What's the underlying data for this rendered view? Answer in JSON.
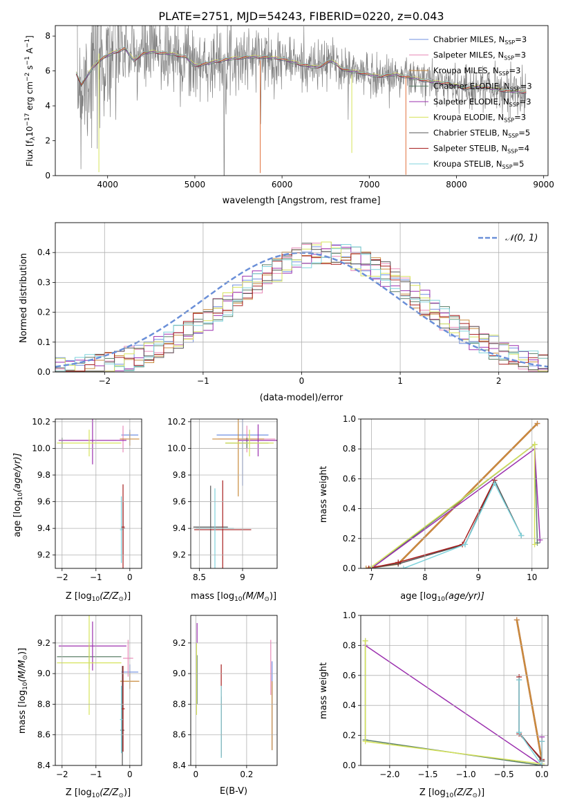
{
  "figure_title": "PLATE=2751, MJD=54243, FIBERID=0220, z=0.043",
  "colors": {
    "Chabrier MILES": "#6f8fe0",
    "Salpeter MILES": "#e88ab8",
    "Kroupa MILES": "#c98a3c",
    "Chabrier ELODIE": "#5b7f68",
    "Salpeter ELODIE": "#9b2fae",
    "Kroupa ELODIE": "#d6e35a",
    "Chabrier STELIB": "#555555",
    "Salpeter STELIB": "#a61c1c",
    "Kroupa STELIB": "#7fd3dc",
    "data": "#808080",
    "fit": "#e0703a",
    "normal": "#6a8fd8",
    "grid": "#b0b0b0"
  },
  "chart_data": [
    {
      "id": "spectrum",
      "type": "line",
      "title": "PLATE=2751, MJD=54243, FIBERID=0220, z=0.043",
      "xlabel": "wavelength [Angstrom, rest frame]",
      "ylabel_main": "Flux [f",
      "ylabel_sub": "λ",
      "ylabel_rest": "10",
      "ylabel_exp": "−17",
      "ylabel_units": " erg cm",
      "ylabel_exp2": "−2",
      "ylabel_units2": " s",
      "ylabel_exp3": "−1",
      "ylabel_units3": " A",
      "ylabel_exp4": "−1",
      "ylabel_end": "]",
      "xlim": [
        3400,
        9050
      ],
      "ylim": [
        0,
        8.6
      ],
      "xticks": [
        4000,
        5000,
        6000,
        7000,
        8000,
        9000
      ],
      "yticks": [
        0,
        2,
        4,
        6,
        8
      ],
      "grid": false,
      "legend_position": "top-right",
      "legend": [
        {
          "label": "Chabrier MILES, N",
          "sub": "SSP",
          "tail": "=3"
        },
        {
          "label": "Salpeter MILES, N",
          "sub": "SSP",
          "tail": "=3"
        },
        {
          "label": "Kroupa MILES, N",
          "sub": "SSP",
          "tail": "=3"
        },
        {
          "label": "Chabrier ELODIE, N",
          "sub": "SSP",
          "tail": "=3"
        },
        {
          "label": "Salpeter ELODIE, N",
          "sub": "SSP",
          "tail": "=3"
        },
        {
          "label": "Kroupa ELODIE, N",
          "sub": "SSP",
          "tail": "=3"
        },
        {
          "label": "Chabrier STELIB, N",
          "sub": "SSP",
          "tail": "=5"
        },
        {
          "label": "Salpeter STELIB, N",
          "sub": "SSP",
          "tail": "=4"
        },
        {
          "label": "Kroupa STELIB, N",
          "sub": "SSP",
          "tail": "=5"
        }
      ],
      "model_curve": {
        "x": [
          3640,
          3700,
          3800,
          3900,
          4000,
          4100,
          4200,
          4300,
          4400,
          4500,
          4700,
          4900,
          5000,
          5200,
          5400,
          5600,
          5800,
          6000,
          6200,
          6400,
          6563,
          6700,
          6900,
          7100,
          7300,
          7500,
          7700,
          7900,
          8100,
          8300,
          8500,
          8700,
          8800
        ],
        "y": [
          5.9,
          5.2,
          6.0,
          6.6,
          6.9,
          7.1,
          7.3,
          6.6,
          7.0,
          7.1,
          7.0,
          6.8,
          6.3,
          6.5,
          6.7,
          6.8,
          6.8,
          6.7,
          6.4,
          6.2,
          6.6,
          6.1,
          5.9,
          5.7,
          5.8,
          5.6,
          5.4,
          5.3,
          5.0,
          5.1,
          4.9,
          4.8,
          4.8
        ]
      }
    },
    {
      "id": "residuals",
      "type": "line",
      "xlabel": "(data-model)/error",
      "ylabel": "Normed distribution",
      "xlim": [
        -2.5,
        2.5
      ],
      "ylim": [
        0,
        0.5
      ],
      "xticks": [
        -2,
        -1,
        0,
        1,
        2
      ],
      "yticks": [
        0.0,
        0.1,
        0.2,
        0.3,
        0.4
      ],
      "grid": true,
      "legend_position": "top-right",
      "legend": [
        {
          "label": "𝒩(0, 1)"
        }
      ]
    },
    {
      "id": "age-vs-Z",
      "type": "scatter",
      "xlabel": "Z [log",
      "xlabel_sub": "10",
      "xlabel_rest": "(Z/Z",
      "xlabel_odot": "⊙",
      "xlabel_end": ")]",
      "ylabel": "age  [log",
      "ylabel_sub": "10",
      "ylabel_rest": "(age/yr)]",
      "xlim": [
        -2.2,
        0.35
      ],
      "ylim": [
        9.1,
        10.22
      ],
      "xticks": [
        -2,
        -1,
        0
      ],
      "yticks": [
        9.2,
        9.4,
        9.6,
        9.8,
        10.0,
        10.2
      ],
      "grid": true,
      "points": [
        {
          "m": "Chabrier MILES",
          "x": 0.0,
          "xe": 0.25,
          "y": 10.1,
          "ye": 0.04
        },
        {
          "m": "Salpeter MILES",
          "x": -0.2,
          "xe": 0.1,
          "y": 10.07,
          "ye": 0.1
        },
        {
          "m": "Kroupa MILES",
          "x": 0.0,
          "xe": 0.28,
          "y": 10.07,
          "ye": 0.05
        },
        {
          "m": "Chabrier ELODIE",
          "x": -2.0,
          "xe": 0.02,
          "y": 10.04,
          "ye": 0.04
        },
        {
          "m": "Salpeter ELODIE",
          "x": -1.1,
          "xe": 1.0,
          "y": 10.06,
          "ye": 0.18
        },
        {
          "m": "Kroupa ELODIE",
          "x": -1.2,
          "xe": 0.95,
          "y": 10.04,
          "ye": 0.1
        },
        {
          "m": "Chabrier STELIB",
          "x": -0.2,
          "xe": 0.06,
          "y": 9.4,
          "ye": 0.2
        },
        {
          "m": "Salpeter STELIB",
          "x": -0.2,
          "xe": 0.05,
          "y": 9.41,
          "ye": 0.32
        },
        {
          "m": "Kroupa STELIB",
          "x": -0.25,
          "xe": 0.04,
          "y": 9.39,
          "ye": 0.25
        }
      ]
    },
    {
      "id": "age-vs-mass",
      "type": "scatter",
      "xlabel": "mass [log",
      "xlabel_sub": "10",
      "xlabel_rest": "(M/M",
      "xlabel_odot": "⊙",
      "xlabel_end": ")]",
      "xlim": [
        8.4,
        9.4
      ],
      "ylim": [
        9.1,
        10.22
      ],
      "xticks": [
        8.5,
        9.0
      ],
      "yticks": [
        9.2,
        9.4,
        9.6,
        9.8,
        10.0,
        10.2
      ],
      "grid": true,
      "points": [
        {
          "m": "Chabrier MILES",
          "x": 9.0,
          "xe": 0.3,
          "y": 10.1,
          "ye": 0.38
        },
        {
          "m": "Salpeter MILES",
          "x": 9.05,
          "xe": 0.33,
          "y": 10.07,
          "ye": 0.1
        },
        {
          "m": "Kroupa MILES",
          "x": 8.95,
          "xe": 0.3,
          "y": 10.07,
          "ye": 0.43
        },
        {
          "m": "Chabrier ELODIE",
          "x": 9.05,
          "xe": 0.25,
          "y": 10.04,
          "ye": 0.04
        },
        {
          "m": "Salpeter ELODIE",
          "x": 9.18,
          "xe": 0.23,
          "y": 10.06,
          "ye": 0.12
        },
        {
          "m": "Kroupa ELODIE",
          "x": 9.08,
          "xe": 0.28,
          "y": 10.04,
          "ye": 0.1
        },
        {
          "m": "Chabrier STELIB",
          "x": 8.63,
          "xe": 0.2,
          "y": 9.41,
          "ye": 0.31
        },
        {
          "m": "Salpeter STELIB",
          "x": 8.77,
          "xe": 0.33,
          "y": 9.39,
          "ye": 0.37
        },
        {
          "m": "Kroupa STELIB",
          "x": 8.68,
          "xe": 0.22,
          "y": 9.4,
          "ye": 0.3
        }
      ]
    },
    {
      "id": "weight-vs-age",
      "type": "line",
      "xlabel": "age  [log",
      "xlabel_sub": "10",
      "xlabel_rest": "(age/yr)]",
      "ylabel": "mass weight",
      "xlim": [
        6.8,
        10.3
      ],
      "ylim": [
        0,
        1.0
      ],
      "xticks": [
        7,
        8,
        9,
        10
      ],
      "yticks": [
        0.0,
        0.2,
        0.4,
        0.6,
        0.8,
        1.0
      ],
      "grid": true,
      "series": [
        {
          "m": "Chabrier MILES",
          "x": [
            7.5,
            10.1
          ],
          "y": [
            0.03,
            0.97
          ]
        },
        {
          "m": "Salpeter MILES",
          "x": [
            7.5,
            10.1
          ],
          "y": [
            0.03,
            0.97
          ]
        },
        {
          "m": "Kroupa MILES",
          "x": [
            6.9,
            7.5,
            10.1
          ],
          "y": [
            0.0,
            0.03,
            0.97
          ]
        },
        {
          "m": "Chabrier ELODIE",
          "x": [
            7.0,
            10.05,
            10.1
          ],
          "y": [
            0.0,
            0.83,
            0.17
          ]
        },
        {
          "m": "Salpeter ELODIE",
          "x": [
            7.0,
            10.05,
            10.15
          ],
          "y": [
            0.0,
            0.8,
            0.19
          ]
        },
        {
          "m": "Kroupa ELODIE",
          "x": [
            7.0,
            10.05,
            10.05
          ],
          "y": [
            0.01,
            0.83,
            0.16
          ]
        },
        {
          "m": "Chabrier STELIB",
          "x": [
            6.95,
            7.5,
            8.75,
            9.3,
            9.8
          ],
          "y": [
            0.0,
            0.03,
            0.16,
            0.59,
            0.22
          ]
        },
        {
          "m": "Salpeter STELIB",
          "x": [
            6.95,
            7.5,
            8.7,
            9.3
          ],
          "y": [
            0.0,
            0.04,
            0.16,
            0.59
          ]
        },
        {
          "m": "Kroupa STELIB",
          "x": [
            7.0,
            7.6,
            8.75,
            9.3,
            9.8
          ],
          "y": [
            0.0,
            0.0,
            0.16,
            0.57,
            0.22
          ]
        }
      ]
    },
    {
      "id": "mass-vs-Z",
      "type": "scatter",
      "xlabel": "Z [log",
      "xlabel_sub": "10",
      "xlabel_rest": "(Z/Z",
      "xlabel_odot": "⊙",
      "xlabel_end": ")]",
      "ylabel": "mass [log",
      "ylabel_sub": "10",
      "ylabel_rest": "(M/M",
      "ylabel_odot": "⊙",
      "ylabel_end": ")]",
      "xlim": [
        -2.2,
        0.35
      ],
      "ylim": [
        8.4,
        9.38
      ],
      "xticks": [
        -2,
        -1,
        0
      ],
      "yticks": [
        8.4,
        8.6,
        8.8,
        9.0,
        9.2
      ],
      "grid": true,
      "points": [
        {
          "m": "Chabrier MILES",
          "x": 0.0,
          "xe": 0.25,
          "y": 9.01,
          "ye": 0.05
        },
        {
          "m": "Salpeter MILES",
          "x": -0.05,
          "xe": 0.15,
          "y": 9.1,
          "ye": 0.12
        },
        {
          "m": "Kroupa MILES",
          "x": 0.0,
          "xe": 0.28,
          "y": 8.95,
          "ye": 0.05
        },
        {
          "m": "Chabrier ELODIE",
          "x": -1.2,
          "xe": 0.95,
          "y": 9.11,
          "ye": 0.08
        },
        {
          "m": "Salpeter ELODIE",
          "x": -1.1,
          "xe": 1.0,
          "y": 9.18,
          "ye": 0.16
        },
        {
          "m": "Kroupa ELODIE",
          "x": -1.2,
          "xe": 0.95,
          "y": 9.07,
          "ye": 0.34
        },
        {
          "m": "Chabrier STELIB",
          "x": -0.22,
          "xe": 0.06,
          "y": 8.63,
          "ye": 0.42
        },
        {
          "m": "Salpeter STELIB",
          "x": -0.2,
          "xe": 0.05,
          "y": 8.77,
          "ye": 0.28
        },
        {
          "m": "Kroupa STELIB",
          "x": -0.25,
          "xe": 0.04,
          "y": 8.7,
          "ye": 0.22
        }
      ]
    },
    {
      "id": "ebv-hist",
      "type": "scatter",
      "xlabel": "E(B-V)",
      "xlim": [
        -0.02,
        0.32
      ],
      "ylim": [
        8.4,
        9.38
      ],
      "xticks": [
        0.0,
        0.2
      ],
      "yticks": [
        8.4,
        8.6,
        8.8,
        9.0,
        9.2
      ],
      "grid": true,
      "points": [
        {
          "m": "Chabrier MILES",
          "x": 0.3,
          "y0": 8.5,
          "y1": 9.08
        },
        {
          "m": "Salpeter MILES",
          "x": 0.295,
          "y0": 8.86,
          "y1": 9.22
        },
        {
          "m": "Kroupa MILES",
          "x": 0.3,
          "y0": 8.5,
          "y1": 8.95
        },
        {
          "m": "Chabrier ELODIE",
          "x": 0.005,
          "y0": 8.8,
          "y1": 9.12
        },
        {
          "m": "Salpeter ELODIE",
          "x": 0.005,
          "y0": 9.2,
          "y1": 9.33
        },
        {
          "m": "Kroupa ELODIE",
          "x": 0.003,
          "y0": 8.73,
          "y1": 9.2
        },
        {
          "m": "Chabrier STELIB",
          "x": 0.1,
          "y0": 8.45,
          "y1": 8.85
        },
        {
          "m": "Salpeter STELIB",
          "x": 0.1,
          "y0": 8.46,
          "y1": 9.06
        },
        {
          "m": "Kroupa STELIB",
          "x": 0.1,
          "y0": 8.45,
          "y1": 8.92
        }
      ]
    },
    {
      "id": "weight-vs-Z",
      "type": "line",
      "xlabel": "Z [log",
      "xlabel_sub": "10",
      "xlabel_rest": "(Z/Z",
      "xlabel_odot": "⊙",
      "xlabel_end": ")]",
      "ylabel": "mass weight",
      "xlim": [
        -2.38,
        0.08
      ],
      "ylim": [
        0,
        1.0
      ],
      "xticks": [
        -2.0,
        -1.5,
        -1.0,
        -0.5,
        0.0
      ],
      "xticklabels": [
        "−2.0",
        "−1.5",
        "−1.0",
        "−0.5",
        "0.0"
      ],
      "yticks": [
        0.0,
        0.2,
        0.4,
        0.6,
        0.8,
        1.0
      ],
      "grid": true,
      "series": [
        {
          "m": "Chabrier MILES",
          "x": [
            -0.33,
            0.0
          ],
          "y": [
            0.97,
            0.03
          ]
        },
        {
          "m": "Salpeter MILES",
          "x": [
            -0.33,
            0.0
          ],
          "y": [
            0.97,
            0.03
          ]
        },
        {
          "m": "Kroupa MILES",
          "x": [
            -0.33,
            0.0
          ],
          "y": [
            0.97,
            0.03
          ]
        },
        {
          "m": "Chabrier ELODIE",
          "x": [
            -2.32,
            -2.32,
            0.0
          ],
          "y": [
            0.83,
            0.17,
            0.0
          ]
        },
        {
          "m": "Salpeter ELODIE",
          "x": [
            -2.32,
            0.0,
            0.0
          ],
          "y": [
            0.8,
            0.0,
            0.19
          ]
        },
        {
          "m": "Kroupa ELODIE",
          "x": [
            -2.32,
            -2.32,
            0.0
          ],
          "y": [
            0.83,
            0.16,
            0.01
          ]
        },
        {
          "m": "Chabrier STELIB",
          "x": [
            -0.3,
            -0.3,
            0.0,
            0.0
          ],
          "y": [
            0.57,
            0.22,
            0.03,
            0.16
          ]
        },
        {
          "m": "Salpeter STELIB",
          "x": [
            -0.3,
            -0.3,
            0.0
          ],
          "y": [
            0.59,
            0.21,
            0.04
          ]
        },
        {
          "m": "Kroupa STELIB",
          "x": [
            -0.3,
            -0.3,
            0.0,
            0.0
          ],
          "y": [
            0.57,
            0.22,
            0.0,
            0.16
          ]
        }
      ]
    }
  ]
}
